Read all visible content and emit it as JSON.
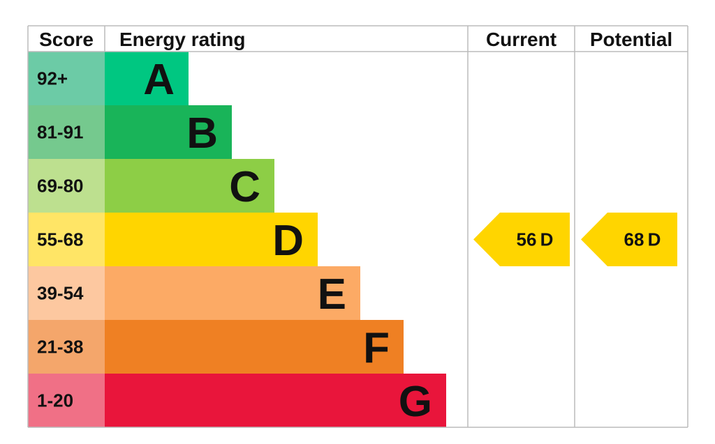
{
  "header": {
    "score": "Score",
    "rating": "Energy rating",
    "current": "Current",
    "potential": "Potential"
  },
  "bands": [
    {
      "score": "92+",
      "letter": "A",
      "color": "#00c781",
      "score_color": "#6ccba6"
    },
    {
      "score": "81-91",
      "letter": "B",
      "color": "#19b459",
      "score_color": "#75c98e"
    },
    {
      "score": "69-80",
      "letter": "C",
      "color": "#8dce46",
      "score_color": "#bde08f"
    },
    {
      "score": "55-68",
      "letter": "D",
      "color": "#ffd500",
      "score_color": "#ffe566"
    },
    {
      "score": "39-54",
      "letter": "E",
      "color": "#fcaa65",
      "score_color": "#fdc8a0"
    },
    {
      "score": "21-38",
      "letter": "F",
      "color": "#ef8023",
      "score_color": "#f4a66b"
    },
    {
      "score": "1-20",
      "letter": "G",
      "color": "#e9153b",
      "score_color": "#f07086"
    }
  ],
  "current": {
    "value": 56,
    "letter": "D"
  },
  "potential": {
    "value": 68,
    "letter": "D"
  }
}
